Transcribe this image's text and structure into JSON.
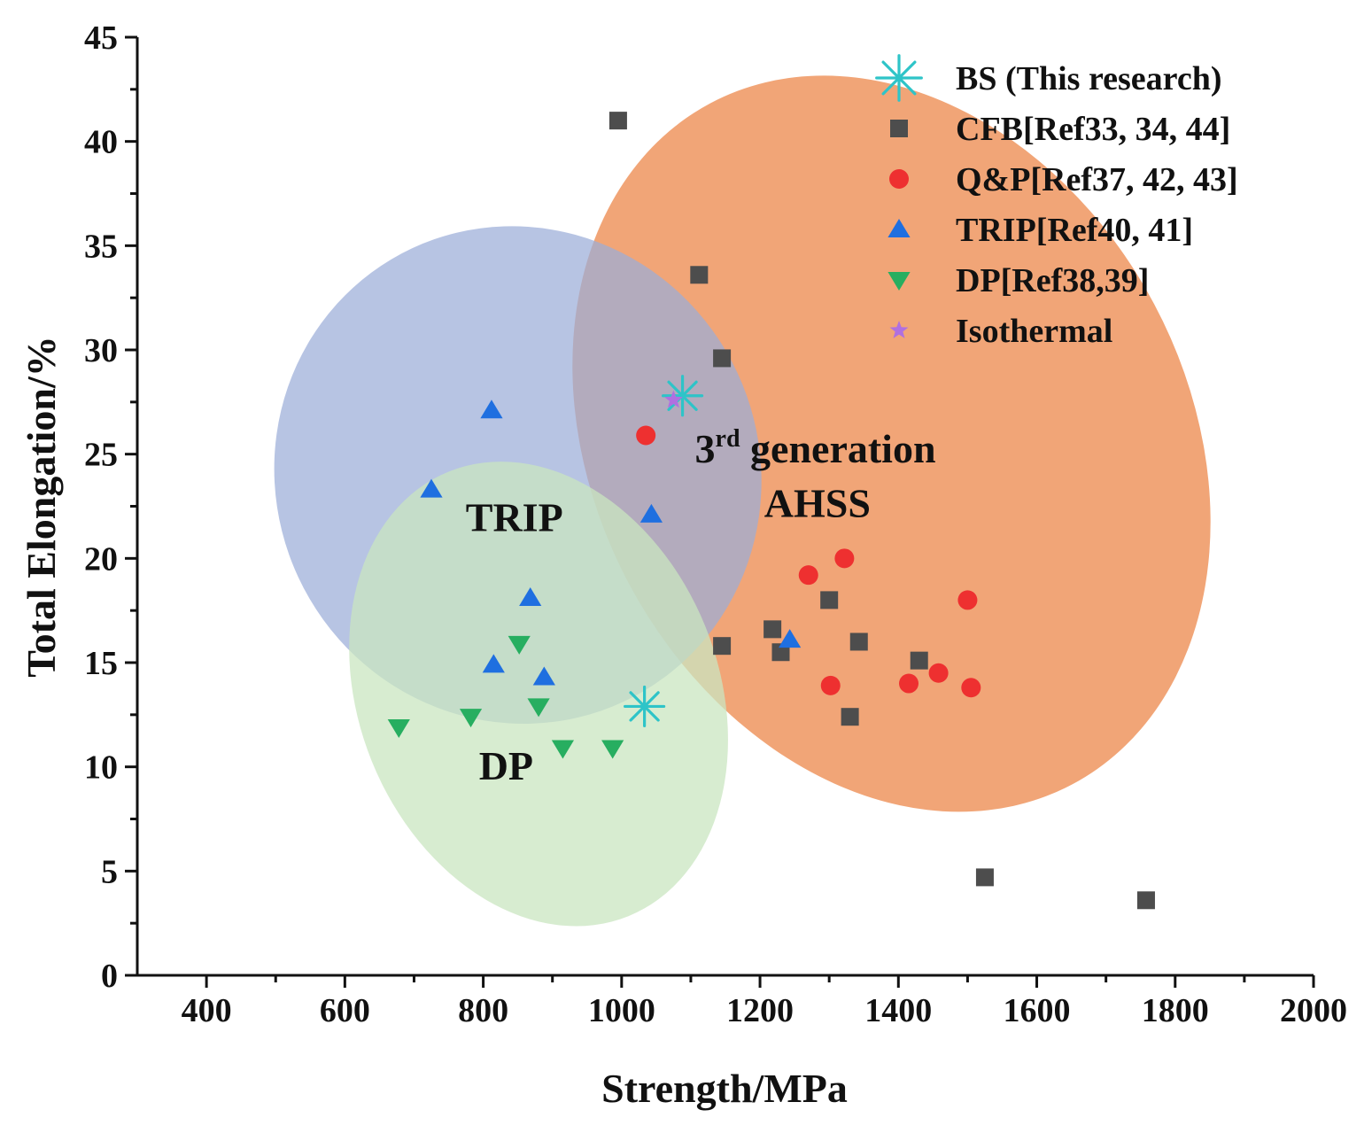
{
  "chart_data": {
    "type": "scatter",
    "xlabel": "Strength/MPa",
    "ylabel": "Total Elongation/%",
    "xlim": [
      300,
      2000
    ],
    "ylim": [
      0,
      45
    ],
    "xticks": [
      400,
      600,
      800,
      1000,
      1200,
      1400,
      1600,
      1800,
      2000
    ],
    "yticks": [
      0,
      5,
      10,
      15,
      20,
      25,
      30,
      35,
      40,
      45
    ],
    "grid": false,
    "legend_position": "top-right",
    "colors": {
      "bs": "#2ec4c8",
      "cfb": "#4d4d4d",
      "qp": "#ee3030",
      "trip": "#1f6fe0",
      "dp": "#27ae60",
      "isothermal": "#b070e0",
      "region_ahss": "#f0a070",
      "region_trip": "#9badd8",
      "region_dp": "#c9e6c0"
    },
    "regions": [
      {
        "id": "ahss",
        "label_line1": "3",
        "label_sup": "rd",
        "label_line1_rest": " generation",
        "label_line2": "AHSS",
        "center": [
          1390,
          25.5
        ],
        "rx": 430,
        "ry": 18.5,
        "rotation_deg": -28
      },
      {
        "id": "trip",
        "label": "TRIP",
        "center": [
          850,
          24
        ],
        "rx": 350,
        "ry": 12,
        "rotation_deg": -25
      },
      {
        "id": "dp",
        "label": "DP",
        "center": [
          880,
          13.5
        ],
        "rx": 260,
        "ry": 11.5,
        "rotation_deg": -22
      }
    ],
    "series": [
      {
        "name": "BS (This research)",
        "marker": "asterisk",
        "color_key": "bs",
        "x": [
          1088,
          1033
        ],
        "y": [
          27.8,
          12.9
        ]
      },
      {
        "name": "CFB[Ref33, 34, 44]",
        "marker": "square",
        "color_key": "cfb",
        "x": [
          995,
          1112,
          1145,
          1145,
          1218,
          1230,
          1300,
          1343,
          1430,
          1330,
          1525,
          1758
        ],
        "y": [
          41.0,
          33.6,
          29.6,
          15.8,
          16.6,
          15.5,
          18.0,
          16.0,
          15.1,
          12.4,
          4.7,
          3.6
        ]
      },
      {
        "name": "Q&P[Ref37, 42, 43]",
        "marker": "circle",
        "color_key": "qp",
        "x": [
          1035,
          1270,
          1322,
          1302,
          1415,
          1458,
          1500,
          1505
        ],
        "y": [
          25.9,
          19.2,
          20.0,
          13.9,
          14.0,
          14.5,
          18.0,
          13.8
        ]
      },
      {
        "name": "TRIP[Ref40, 41]",
        "marker": "triangle-up",
        "color_key": "trip",
        "x": [
          812,
          725,
          1043,
          868,
          815,
          888,
          1243
        ],
        "y": [
          27.1,
          23.3,
          22.1,
          18.1,
          14.9,
          14.3,
          16.1
        ]
      },
      {
        "name": "DP[Ref38,39]",
        "marker": "triangle-down",
        "color_key": "dp",
        "x": [
          678,
          782,
          852,
          880,
          915,
          987
        ],
        "y": [
          11.9,
          12.4,
          15.9,
          12.9,
          10.9,
          10.9
        ]
      },
      {
        "name": "Isothermal",
        "marker": "star",
        "color_key": "isothermal",
        "x": [
          1075
        ],
        "y": [
          27.6
        ]
      }
    ]
  }
}
